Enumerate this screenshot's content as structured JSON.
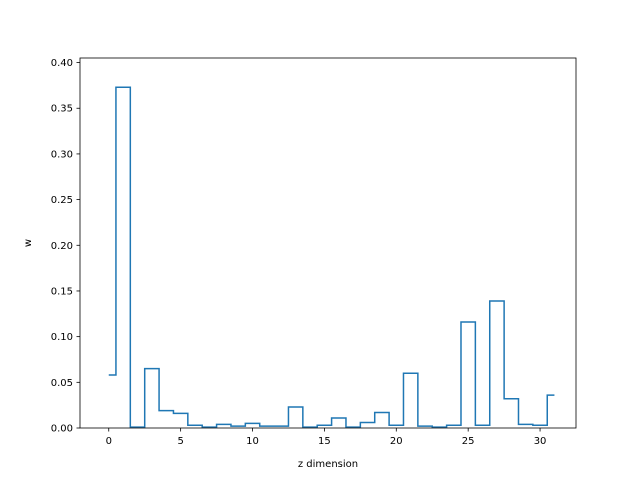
{
  "chart_data": {
    "type": "line",
    "style": "step",
    "xlabel": "z dimension",
    "ylabel": "w",
    "xlim": [
      -2.0,
      32.5
    ],
    "ylim": [
      0,
      0.405
    ],
    "grid": false,
    "color": "#1f77b4",
    "x": [
      0,
      1,
      2,
      3,
      4,
      5,
      6,
      7,
      8,
      9,
      10,
      11,
      12,
      13,
      14,
      15,
      16,
      17,
      18,
      19,
      20,
      21,
      22,
      23,
      24,
      25,
      26,
      27,
      28,
      29,
      30,
      31
    ],
    "values": [
      0.058,
      0.373,
      0.001,
      0.065,
      0.019,
      0.016,
      0.003,
      0.001,
      0.004,
      0.002,
      0.005,
      0.002,
      0.002,
      0.023,
      0.001,
      0.003,
      0.011,
      0.001,
      0.006,
      0.017,
      0.003,
      0.06,
      0.002,
      0.001,
      0.003,
      0.116,
      0.003,
      0.139,
      0.032,
      0.004,
      0.003,
      0.036
    ],
    "xticks": [
      0,
      5,
      10,
      15,
      20,
      25,
      30
    ],
    "xtick_labels": [
      "0",
      "5",
      "10",
      "15",
      "20",
      "25",
      "30"
    ],
    "yticks": [
      0,
      0.05,
      0.1,
      0.15,
      0.2,
      0.25,
      0.3,
      0.35,
      0.4
    ],
    "ytick_labels": [
      "0.00",
      "0.05",
      "0.10",
      "0.15",
      "0.20",
      "0.25",
      "0.30",
      "0.35",
      "0.40"
    ]
  }
}
